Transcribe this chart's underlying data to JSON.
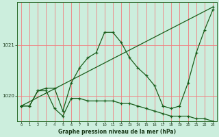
{
  "title": "Graphe pression niveau de la mer (hPa)",
  "background_color": "#cceedd",
  "plot_bg_color": "#cceedd",
  "grid_h_color": "#f08080",
  "grid_v_color": "#f08080",
  "line_color": "#1a5c1a",
  "xlim": [
    -0.5,
    23.5
  ],
  "ylim": [
    1019.5,
    1021.85
  ],
  "yticks": [
    1020,
    1021
  ],
  "xticks": [
    0,
    1,
    2,
    3,
    4,
    5,
    6,
    7,
    8,
    9,
    10,
    11,
    12,
    13,
    14,
    15,
    16,
    17,
    18,
    19,
    20,
    21,
    22,
    23
  ],
  "series": [
    {
      "x": [
        0,
        1,
        2,
        3,
        4,
        5,
        6,
        7,
        8,
        9,
        10,
        11,
        12,
        13,
        14,
        15,
        16,
        17,
        18,
        19,
        20,
        21,
        22,
        23
      ],
      "y": [
        1019.8,
        1019.8,
        1020.1,
        1020.15,
        1020.15,
        1019.7,
        1020.25,
        1020.55,
        1020.75,
        1020.85,
        1021.25,
        1021.25,
        1021.05,
        1020.75,
        1020.55,
        1020.4,
        1020.2,
        1019.8,
        1019.75,
        1019.8,
        1020.25,
        1020.85,
        1021.3,
        1021.7
      ]
    },
    {
      "x": [
        0,
        1,
        2,
        3,
        4,
        5,
        6,
        7,
        8,
        9,
        10,
        11,
        12,
        13,
        14,
        15,
        16,
        17,
        18,
        19,
        20,
        21,
        22,
        23
      ],
      "y": [
        1019.8,
        1019.8,
        1020.1,
        1020.1,
        1019.75,
        1019.6,
        1019.95,
        1019.95,
        1019.9,
        1019.9,
        1019.9,
        1019.9,
        1019.85,
        1019.85,
        1019.8,
        1019.75,
        1019.7,
        1019.65,
        1019.6,
        1019.6,
        1019.6,
        1019.55,
        1019.55,
        1019.5
      ]
    },
    {
      "x": [
        0,
        23
      ],
      "y": [
        1019.8,
        1021.75
      ]
    }
  ]
}
